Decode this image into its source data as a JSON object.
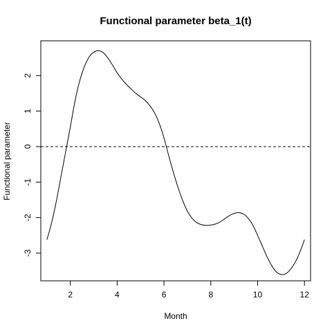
{
  "chart_data": {
    "type": "line",
    "title": "Functional parameter beta_1(t)",
    "xlabel": "Month",
    "ylabel": "Functional parameter",
    "xlim": [
      0.74,
      12.26
    ],
    "ylim": [
      -3.78,
      2.98
    ],
    "xticks": [
      2,
      4,
      6,
      8,
      10,
      12
    ],
    "yticks": [
      -3,
      -2,
      -1,
      0,
      1,
      2
    ],
    "grid": false,
    "legend": "none",
    "reference_line": {
      "y": 0,
      "style": "dashed"
    },
    "series": [
      {
        "x": [
          1.0,
          1.2,
          1.4,
          1.6,
          1.8,
          2.0,
          2.2,
          2.4,
          2.6,
          2.8,
          3.0,
          3.2,
          3.4,
          3.6,
          3.8,
          4.0,
          4.2,
          4.4,
          4.6,
          4.8,
          5.0,
          5.2,
          5.4,
          5.6,
          5.8,
          6.0,
          6.2,
          6.4,
          6.6,
          6.8,
          7.0,
          7.2,
          7.4,
          7.6,
          7.8,
          8.0,
          8.2,
          8.4,
          8.6,
          8.8,
          9.0,
          9.2,
          9.4,
          9.6,
          9.8,
          10.0,
          10.2,
          10.4,
          10.6,
          10.8,
          11.0,
          11.2,
          11.4,
          11.6,
          11.8,
          12.0
        ],
        "y": [
          -2.62,
          -2.15,
          -1.55,
          -0.85,
          -0.15,
          0.55,
          1.28,
          1.85,
          2.25,
          2.52,
          2.66,
          2.7,
          2.65,
          2.5,
          2.3,
          2.08,
          1.9,
          1.75,
          1.62,
          1.5,
          1.4,
          1.3,
          1.15,
          0.95,
          0.65,
          0.25,
          -0.25,
          -0.72,
          -1.15,
          -1.52,
          -1.82,
          -2.02,
          -2.14,
          -2.2,
          -2.22,
          -2.21,
          -2.18,
          -2.12,
          -2.03,
          -1.94,
          -1.88,
          -1.86,
          -1.9,
          -2.02,
          -2.22,
          -2.5,
          -2.8,
          -3.1,
          -3.35,
          -3.53,
          -3.6,
          -3.58,
          -3.46,
          -3.26,
          -2.98,
          -2.62
        ]
      }
    ]
  }
}
